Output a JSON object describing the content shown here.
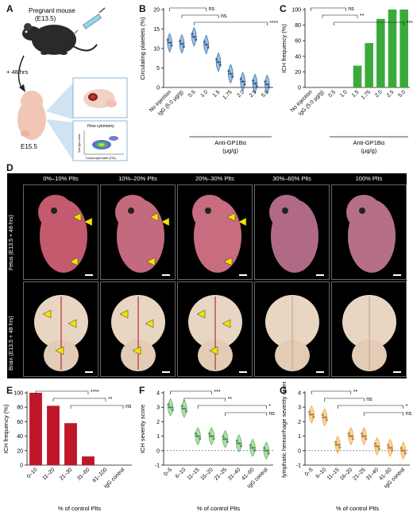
{
  "panels": {
    "A": {
      "letter": "A",
      "mouse_label": "Pregnant mouse",
      "mouse_age": "(E13.5)",
      "time_label": "+ 48 hrs",
      "embryo_label": "E15.5",
      "flow_title": "Flow cytometry",
      "flow_xlabel": "Forward light scatter (FSC)",
      "flow_ylabel": "Side light scatter"
    },
    "B": {
      "letter": "B",
      "ylabel": "Circulating platelets (%)",
      "group_label": "Anti-GP1Bα",
      "group_unit": "(μg/g)",
      "sig": [
        "ns",
        "ns",
        "****"
      ]
    },
    "C": {
      "letter": "C",
      "ylabel": "ICH frequency (%)",
      "group_label": "Anti-GP1Bα",
      "group_unit": "(μg/g)",
      "sig": [
        "ns",
        "**",
        "****"
      ]
    },
    "D": {
      "letter": "D",
      "col_headers": [
        "0%–10% Plts",
        "10%–20% Plts",
        "20%–30% Plts",
        "30%–60% Plts",
        "100% Plts"
      ],
      "row_headers": [
        "Fetus (E13.5 + 48 hrs)",
        "Brain (E13.5 + 48 hrs)"
      ]
    },
    "E": {
      "letter": "E",
      "ylabel": "ICH frequency (%)",
      "xlabel": "% of control Plts",
      "sig": [
        "****",
        "**",
        "ns"
      ]
    },
    "F": {
      "letter": "F",
      "ylabel": "ICH severity score",
      "xlabel": "% of control Plts",
      "sig": [
        "***",
        "**",
        "*",
        "ns"
      ]
    },
    "G": {
      "letter": "G",
      "ylabel": "lymphatic hemorrhage severity score",
      "xlabel": "% of control Plts",
      "sig": [
        "**",
        "ns",
        "*",
        "ns"
      ]
    }
  },
  "chart_data": [
    {
      "id": "B",
      "type": "violin",
      "categories": [
        "No injection",
        "IgG (5.0 μg/g)",
        "0.5",
        "1.0",
        "1.5",
        "1.75",
        "2.0",
        "2.5",
        "5.0"
      ],
      "values": [
        11.5,
        11.2,
        13.0,
        11.0,
        6.5,
        3.5,
        1.5,
        1.0,
        0.8
      ],
      "ylim": [
        0,
        20
      ],
      "yticks": [
        0,
        5,
        10,
        15,
        20
      ],
      "color": "#2f6fb0"
    },
    {
      "id": "C",
      "type": "bar",
      "categories": [
        "No injection",
        "IgG (5.0 μg/g)",
        "0.5",
        "1.0",
        "1.5",
        "1.75",
        "2.0",
        "2.5",
        "5.0"
      ],
      "values": [
        0,
        0,
        0,
        0,
        28,
        57,
        88,
        100,
        100
      ],
      "ylim": [
        0,
        100
      ],
      "yticks": [
        0,
        20,
        40,
        60,
        80,
        100
      ],
      "color": "#3aaa3a"
    },
    {
      "id": "E",
      "type": "bar",
      "categories": [
        "0–10",
        "11–20",
        "21–30",
        "31–60",
        "61–100",
        "IgG control"
      ],
      "values": [
        100,
        82,
        58,
        12,
        0,
        0
      ],
      "ylim": [
        0,
        100
      ],
      "yticks": [
        0,
        20,
        40,
        60,
        80,
        100
      ],
      "color": "#c0162a"
    },
    {
      "id": "F",
      "type": "violin",
      "categories": [
        "0–5",
        "6–10",
        "11–15",
        "16–20",
        "21–25",
        "31–40",
        "41–60",
        "IgG control"
      ],
      "values": [
        3,
        2.9,
        1.0,
        1.0,
        0.8,
        0.5,
        0.2,
        0
      ],
      "ylim": [
        -1,
        4
      ],
      "yticks": [
        -1,
        0,
        1,
        2,
        3,
        4
      ],
      "color": "#52b552"
    },
    {
      "id": "G",
      "type": "violin",
      "categories": [
        "0–5",
        "6–10",
        "11–15",
        "16–20",
        "21–25",
        "31–40",
        "41–60",
        "IgG control"
      ],
      "values": [
        2.5,
        2.3,
        0.4,
        1.0,
        1.0,
        0.3,
        0.2,
        0
      ],
      "ylim": [
        -1,
        4
      ],
      "yticks": [
        -1,
        0,
        1,
        2,
        3,
        4
      ],
      "color": "#f0a030"
    }
  ]
}
